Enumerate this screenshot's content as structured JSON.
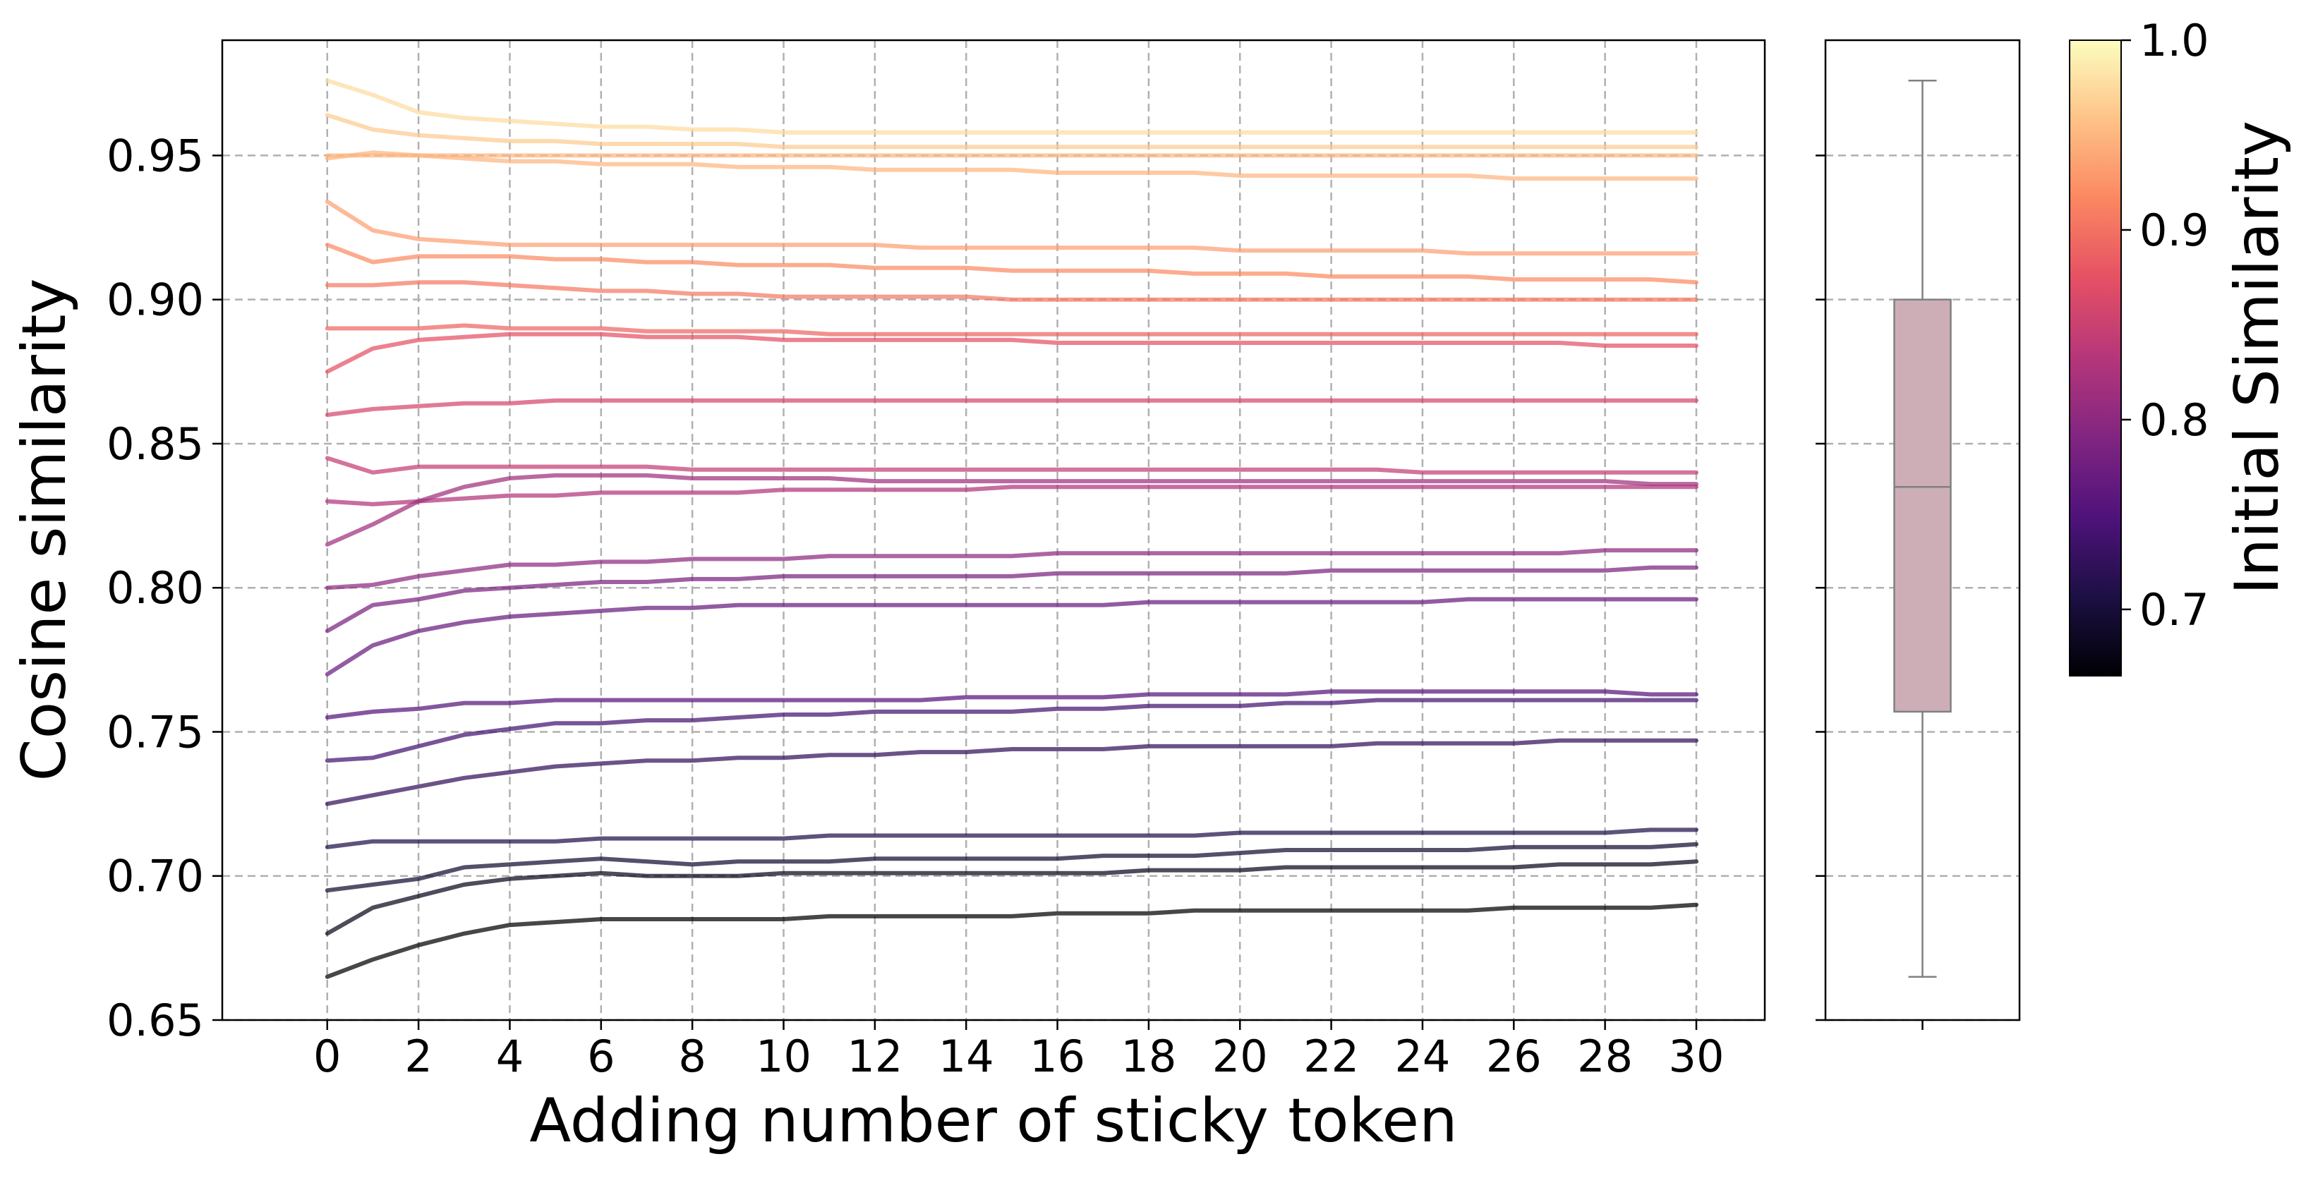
{
  "chart_data": [
    {
      "type": "line",
      "xlabel": "Adding number of sticky token",
      "ylabel": "Cosine similarity",
      "xlim": [
        -2.3,
        31.5
      ],
      "ylim": [
        0.65,
        0.99
      ],
      "xticks": [
        "0",
        "2",
        "4",
        "6",
        "8",
        "10",
        "12",
        "14",
        "16",
        "18",
        "20",
        "22",
        "24",
        "26",
        "28",
        "30"
      ],
      "yticks": [
        "0.65",
        "0.70",
        "0.75",
        "0.80",
        "0.85",
        "0.90",
        "0.95"
      ],
      "grid": true,
      "x": [
        0,
        1,
        2,
        3,
        4,
        5,
        6,
        7,
        8,
        9,
        10,
        11,
        12,
        13,
        14,
        15,
        16,
        17,
        18,
        19,
        20,
        21,
        22,
        23,
        24,
        25,
        26,
        27,
        28,
        29,
        30
      ],
      "series": [
        {
          "initial": 0.976,
          "values": [
            0.976,
            0.971,
            0.965,
            0.963,
            0.962,
            0.961,
            0.96,
            0.96,
            0.959,
            0.959,
            0.958,
            0.958,
            0.958,
            0.958,
            0.958,
            0.958,
            0.958,
            0.958,
            0.958,
            0.958,
            0.958,
            0.958,
            0.958,
            0.958,
            0.958,
            0.958,
            0.958,
            0.958,
            0.958,
            0.958,
            0.958
          ]
        },
        {
          "initial": 0.964,
          "values": [
            0.964,
            0.959,
            0.957,
            0.956,
            0.955,
            0.955,
            0.954,
            0.954,
            0.954,
            0.954,
            0.953,
            0.953,
            0.953,
            0.953,
            0.953,
            0.953,
            0.953,
            0.953,
            0.953,
            0.953,
            0.953,
            0.953,
            0.953,
            0.953,
            0.953,
            0.953,
            0.953,
            0.953,
            0.953,
            0.953,
            0.953
          ]
        },
        {
          "initial": 0.95,
          "values": [
            0.95,
            0.95,
            0.95,
            0.95,
            0.95,
            0.95,
            0.95,
            0.95,
            0.95,
            0.95,
            0.95,
            0.95,
            0.95,
            0.95,
            0.95,
            0.95,
            0.95,
            0.95,
            0.95,
            0.95,
            0.95,
            0.95,
            0.95,
            0.95,
            0.95,
            0.95,
            0.95,
            0.95,
            0.95,
            0.95,
            0.95
          ]
        },
        {
          "initial": 0.949,
          "values": [
            0.949,
            0.951,
            0.95,
            0.949,
            0.948,
            0.948,
            0.947,
            0.947,
            0.947,
            0.946,
            0.946,
            0.946,
            0.945,
            0.945,
            0.945,
            0.945,
            0.944,
            0.944,
            0.944,
            0.944,
            0.943,
            0.943,
            0.943,
            0.943,
            0.943,
            0.943,
            0.942,
            0.942,
            0.942,
            0.942,
            0.942
          ]
        },
        {
          "initial": 0.934,
          "values": [
            0.934,
            0.924,
            0.921,
            0.92,
            0.919,
            0.919,
            0.919,
            0.919,
            0.919,
            0.919,
            0.919,
            0.919,
            0.919,
            0.918,
            0.918,
            0.918,
            0.918,
            0.918,
            0.918,
            0.918,
            0.917,
            0.917,
            0.917,
            0.917,
            0.917,
            0.916,
            0.916,
            0.916,
            0.916,
            0.916,
            0.916
          ]
        },
        {
          "initial": 0.919,
          "values": [
            0.919,
            0.913,
            0.915,
            0.915,
            0.915,
            0.914,
            0.914,
            0.913,
            0.913,
            0.912,
            0.912,
            0.912,
            0.911,
            0.911,
            0.911,
            0.91,
            0.91,
            0.91,
            0.91,
            0.909,
            0.909,
            0.909,
            0.908,
            0.908,
            0.908,
            0.908,
            0.907,
            0.907,
            0.907,
            0.907,
            0.906
          ]
        },
        {
          "initial": 0.905,
          "values": [
            0.905,
            0.905,
            0.906,
            0.906,
            0.905,
            0.904,
            0.903,
            0.903,
            0.902,
            0.902,
            0.901,
            0.901,
            0.901,
            0.901,
            0.901,
            0.9,
            0.9,
            0.9,
            0.9,
            0.9,
            0.9,
            0.9,
            0.9,
            0.9,
            0.9,
            0.9,
            0.9,
            0.9,
            0.9,
            0.9,
            0.9
          ]
        },
        {
          "initial": 0.89,
          "values": [
            0.89,
            0.89,
            0.89,
            0.891,
            0.89,
            0.89,
            0.89,
            0.889,
            0.889,
            0.889,
            0.889,
            0.888,
            0.888,
            0.888,
            0.888,
            0.888,
            0.888,
            0.888,
            0.888,
            0.888,
            0.888,
            0.888,
            0.888,
            0.888,
            0.888,
            0.888,
            0.888,
            0.888,
            0.888,
            0.888,
            0.888
          ]
        },
        {
          "initial": 0.875,
          "values": [
            0.875,
            0.883,
            0.886,
            0.887,
            0.888,
            0.888,
            0.888,
            0.887,
            0.887,
            0.887,
            0.886,
            0.886,
            0.886,
            0.886,
            0.886,
            0.886,
            0.885,
            0.885,
            0.885,
            0.885,
            0.885,
            0.885,
            0.885,
            0.885,
            0.885,
            0.885,
            0.885,
            0.885,
            0.884,
            0.884,
            0.884
          ]
        },
        {
          "initial": 0.86,
          "values": [
            0.86,
            0.862,
            0.863,
            0.864,
            0.864,
            0.865,
            0.865,
            0.865,
            0.865,
            0.865,
            0.865,
            0.865,
            0.865,
            0.865,
            0.865,
            0.865,
            0.865,
            0.865,
            0.865,
            0.865,
            0.865,
            0.865,
            0.865,
            0.865,
            0.865,
            0.865,
            0.865,
            0.865,
            0.865,
            0.865,
            0.865
          ]
        },
        {
          "initial": 0.845,
          "values": [
            0.845,
            0.84,
            0.842,
            0.842,
            0.842,
            0.842,
            0.842,
            0.842,
            0.841,
            0.841,
            0.841,
            0.841,
            0.841,
            0.841,
            0.841,
            0.841,
            0.841,
            0.841,
            0.841,
            0.841,
            0.841,
            0.841,
            0.841,
            0.841,
            0.84,
            0.84,
            0.84,
            0.84,
            0.84,
            0.84,
            0.84
          ]
        },
        {
          "initial": 0.83,
          "values": [
            0.83,
            0.829,
            0.83,
            0.831,
            0.832,
            0.832,
            0.833,
            0.833,
            0.833,
            0.833,
            0.834,
            0.834,
            0.834,
            0.834,
            0.834,
            0.835,
            0.835,
            0.835,
            0.835,
            0.835,
            0.835,
            0.835,
            0.835,
            0.835,
            0.835,
            0.835,
            0.835,
            0.835,
            0.835,
            0.835,
            0.835
          ]
        },
        {
          "initial": 0.815,
          "values": [
            0.815,
            0.822,
            0.83,
            0.835,
            0.838,
            0.839,
            0.839,
            0.839,
            0.838,
            0.838,
            0.838,
            0.838,
            0.837,
            0.837,
            0.837,
            0.837,
            0.837,
            0.837,
            0.837,
            0.837,
            0.837,
            0.837,
            0.837,
            0.837,
            0.837,
            0.837,
            0.837,
            0.837,
            0.837,
            0.836,
            0.836
          ]
        },
        {
          "initial": 0.8,
          "values": [
            0.8,
            0.801,
            0.804,
            0.806,
            0.808,
            0.808,
            0.809,
            0.809,
            0.81,
            0.81,
            0.81,
            0.811,
            0.811,
            0.811,
            0.811,
            0.811,
            0.812,
            0.812,
            0.812,
            0.812,
            0.812,
            0.812,
            0.812,
            0.812,
            0.812,
            0.812,
            0.812,
            0.812,
            0.813,
            0.813,
            0.813
          ]
        },
        {
          "initial": 0.785,
          "values": [
            0.785,
            0.794,
            0.796,
            0.799,
            0.8,
            0.801,
            0.802,
            0.802,
            0.803,
            0.803,
            0.804,
            0.804,
            0.804,
            0.804,
            0.804,
            0.804,
            0.805,
            0.805,
            0.805,
            0.805,
            0.805,
            0.805,
            0.806,
            0.806,
            0.806,
            0.806,
            0.806,
            0.806,
            0.806,
            0.807,
            0.807
          ]
        },
        {
          "initial": 0.77,
          "values": [
            0.77,
            0.78,
            0.785,
            0.788,
            0.79,
            0.791,
            0.792,
            0.793,
            0.793,
            0.794,
            0.794,
            0.794,
            0.794,
            0.794,
            0.794,
            0.794,
            0.794,
            0.794,
            0.795,
            0.795,
            0.795,
            0.795,
            0.795,
            0.795,
            0.795,
            0.796,
            0.796,
            0.796,
            0.796,
            0.796,
            0.796
          ]
        },
        {
          "initial": 0.755,
          "values": [
            0.755,
            0.757,
            0.758,
            0.76,
            0.76,
            0.761,
            0.761,
            0.761,
            0.761,
            0.761,
            0.761,
            0.761,
            0.761,
            0.761,
            0.762,
            0.762,
            0.762,
            0.762,
            0.763,
            0.763,
            0.763,
            0.763,
            0.764,
            0.764,
            0.764,
            0.764,
            0.764,
            0.764,
            0.764,
            0.763,
            0.763
          ]
        },
        {
          "initial": 0.74,
          "values": [
            0.74,
            0.741,
            0.745,
            0.749,
            0.751,
            0.753,
            0.753,
            0.754,
            0.754,
            0.755,
            0.756,
            0.756,
            0.757,
            0.757,
            0.757,
            0.757,
            0.758,
            0.758,
            0.759,
            0.759,
            0.759,
            0.76,
            0.76,
            0.761,
            0.761,
            0.761,
            0.761,
            0.761,
            0.761,
            0.761,
            0.761
          ]
        },
        {
          "initial": 0.725,
          "values": [
            0.725,
            0.728,
            0.731,
            0.734,
            0.736,
            0.738,
            0.739,
            0.74,
            0.74,
            0.741,
            0.741,
            0.742,
            0.742,
            0.743,
            0.743,
            0.744,
            0.744,
            0.744,
            0.745,
            0.745,
            0.745,
            0.745,
            0.745,
            0.746,
            0.746,
            0.746,
            0.746,
            0.747,
            0.747,
            0.747,
            0.747
          ]
        },
        {
          "initial": 0.71,
          "values": [
            0.71,
            0.712,
            0.712,
            0.712,
            0.712,
            0.712,
            0.713,
            0.713,
            0.713,
            0.713,
            0.713,
            0.714,
            0.714,
            0.714,
            0.714,
            0.714,
            0.714,
            0.714,
            0.714,
            0.714,
            0.715,
            0.715,
            0.715,
            0.715,
            0.715,
            0.715,
            0.715,
            0.715,
            0.715,
            0.716,
            0.716
          ]
        },
        {
          "initial": 0.695,
          "values": [
            0.695,
            0.697,
            0.699,
            0.703,
            0.704,
            0.705,
            0.706,
            0.705,
            0.704,
            0.705,
            0.705,
            0.705,
            0.706,
            0.706,
            0.706,
            0.706,
            0.706,
            0.707,
            0.707,
            0.707,
            0.708,
            0.709,
            0.709,
            0.709,
            0.709,
            0.709,
            0.71,
            0.71,
            0.71,
            0.71,
            0.711
          ]
        },
        {
          "initial": 0.68,
          "values": [
            0.68,
            0.689,
            0.693,
            0.697,
            0.699,
            0.7,
            0.701,
            0.7,
            0.7,
            0.7,
            0.701,
            0.701,
            0.701,
            0.701,
            0.701,
            0.701,
            0.701,
            0.701,
            0.702,
            0.702,
            0.702,
            0.703,
            0.703,
            0.703,
            0.703,
            0.703,
            0.703,
            0.704,
            0.704,
            0.704,
            0.705
          ]
        },
        {
          "initial": 0.665,
          "values": [
            0.665,
            0.671,
            0.676,
            0.68,
            0.683,
            0.684,
            0.685,
            0.685,
            0.685,
            0.685,
            0.685,
            0.686,
            0.686,
            0.686,
            0.686,
            0.686,
            0.687,
            0.687,
            0.687,
            0.688,
            0.688,
            0.688,
            0.688,
            0.688,
            0.688,
            0.688,
            0.689,
            0.689,
            0.689,
            0.689,
            0.69
          ]
        }
      ]
    },
    {
      "type": "box",
      "ylim": [
        0.65,
        0.99
      ],
      "min": 0.665,
      "q1": 0.757,
      "median": 0.835,
      "q3": 0.9,
      "max": 0.976,
      "color": "#cdaeb6",
      "edge_color": "#808080"
    },
    {
      "type": "colorbar",
      "label": "Initial Similarity",
      "colormap": "magma",
      "range": [
        0.665,
        1.0
      ],
      "ticks": [
        "0.7",
        "0.8",
        "0.9",
        "1.0"
      ]
    }
  ],
  "colors": {
    "grid": "#b0b0b0",
    "axis": "#000000",
    "magma_stops": [
      "#000004",
      "#1c1044",
      "#4f127b",
      "#812581",
      "#b5367a",
      "#e55064",
      "#fb8761",
      "#fec287",
      "#fcfdbf"
    ]
  }
}
